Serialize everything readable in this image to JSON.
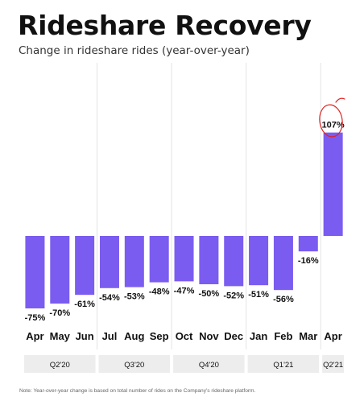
{
  "title": "Rideshare Recovery",
  "subtitle": "Change in rideshare rides (year-over-year)",
  "note": "Note:  Year-over-year change is based on total number of rides on the Company's rideshare platform.",
  "colors": {
    "bar": "#7b5cf0",
    "band": "#ededed",
    "divider": "#e4e4e4",
    "annotation": "#e02020"
  },
  "chart_data": {
    "type": "bar",
    "categories": [
      "Apr",
      "May",
      "Jun",
      "Jul",
      "Aug",
      "Sep",
      "Oct",
      "Nov",
      "Dec",
      "Jan",
      "Feb",
      "Mar",
      "Apr"
    ],
    "values": [
      -75,
      -70,
      -61,
      -54,
      -53,
      -48,
      -47,
      -50,
      -52,
      -51,
      -56,
      -16,
      107
    ],
    "data_labels": [
      "-75%",
      "-70%",
      "-61%",
      "-54%",
      "-53%",
      "-48%",
      "-47%",
      "-50%",
      "-52%",
      "-51%",
      "-56%",
      "-16%",
      "107%"
    ],
    "groups": [
      {
        "label": "Q2'20",
        "count": 3
      },
      {
        "label": "Q3'20",
        "count": 3
      },
      {
        "label": "Q4'20",
        "count": 3
      },
      {
        "label": "Q1'21",
        "count": 3
      },
      {
        "label": "Q2'21",
        "count": 1
      }
    ],
    "grid": false,
    "legend": "none",
    "annotation": "hand-drawn red circle around the 107% label"
  }
}
